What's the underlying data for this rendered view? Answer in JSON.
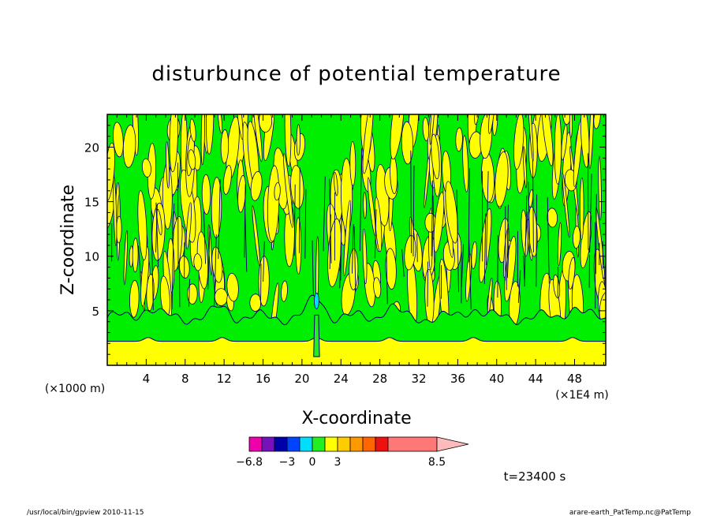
{
  "chart_data": {
    "type": "heatmap",
    "title": "disturbunce of potential temperature",
    "xlabel": "X-coordinate",
    "ylabel": "Z-coordinate",
    "x_unit": "(×1E4 m)",
    "y_unit": "(×1000 m)",
    "xlim": [
      0,
      51.2
    ],
    "ylim": [
      0,
      23
    ],
    "x_ticks": [
      4,
      8,
      12,
      16,
      20,
      24,
      28,
      32,
      36,
      40,
      44,
      48
    ],
    "y_ticks": [
      5,
      10,
      15,
      20
    ],
    "field_colors": {
      "background": "#00ee00",
      "near_zero": "#ffff00",
      "contour": "#000066"
    },
    "colorbar": {
      "labels": [
        {
          "value": "-6.8",
          "at": 0
        },
        {
          "value": "-3",
          "at": 3
        },
        {
          "value": "0",
          "at": 5
        },
        {
          "value": "3",
          "at": 7
        },
        {
          "value": "8.5",
          "at": 12
        }
      ],
      "colors": [
        "#ee00aa",
        "#7711bb",
        "#0000aa",
        "#0044ff",
        "#00ddff",
        "#22ee22",
        "#ffff00",
        "#ffcc00",
        "#ff9900",
        "#ff6600",
        "#ee1111",
        "#ff7777",
        "#ffbbbb"
      ]
    },
    "time_label": "t=23400 s"
  },
  "footer": {
    "left": "/usr/local/bin/gpview  2010-11-15",
    "right": "arare-earth_PatTemp.nc@PatTemp"
  }
}
